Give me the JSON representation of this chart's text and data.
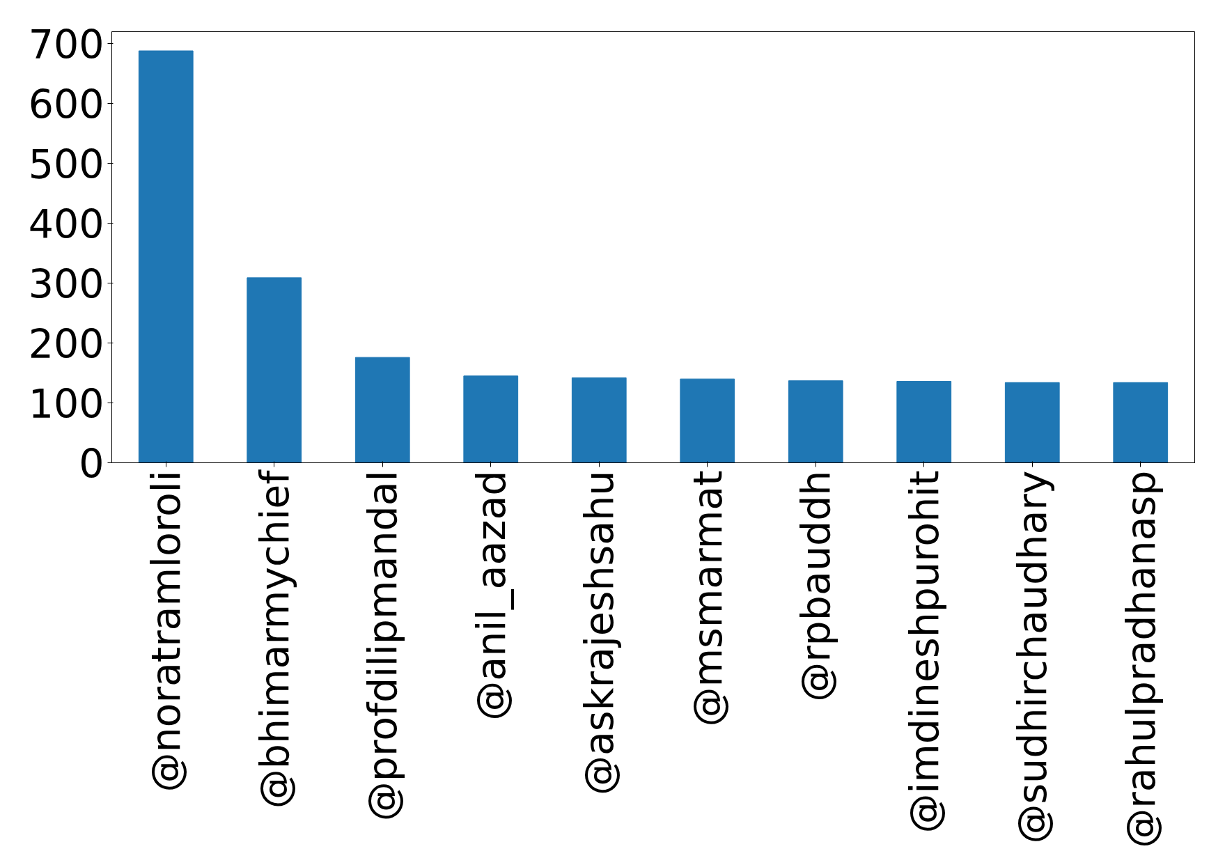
{
  "chart_data": {
    "type": "bar",
    "categories": [
      "@noratramloroli",
      "@bhimarmychief",
      "@profdilipmandal",
      "@anil_aazad",
      "@askrajeshsahu",
      "@msmarmat",
      "@rpbauddh",
      "@imdineshpurohit",
      "@sudhirchaudhary",
      "@rahulpradhanasp"
    ],
    "values": [
      688,
      309,
      176,
      145,
      142,
      140,
      137,
      136,
      134,
      134
    ],
    "color": "#1f77b4",
    "ylim": [
      0,
      720
    ],
    "yticks": [
      0,
      100,
      200,
      300,
      400,
      500,
      600,
      700
    ],
    "grid": false
  }
}
